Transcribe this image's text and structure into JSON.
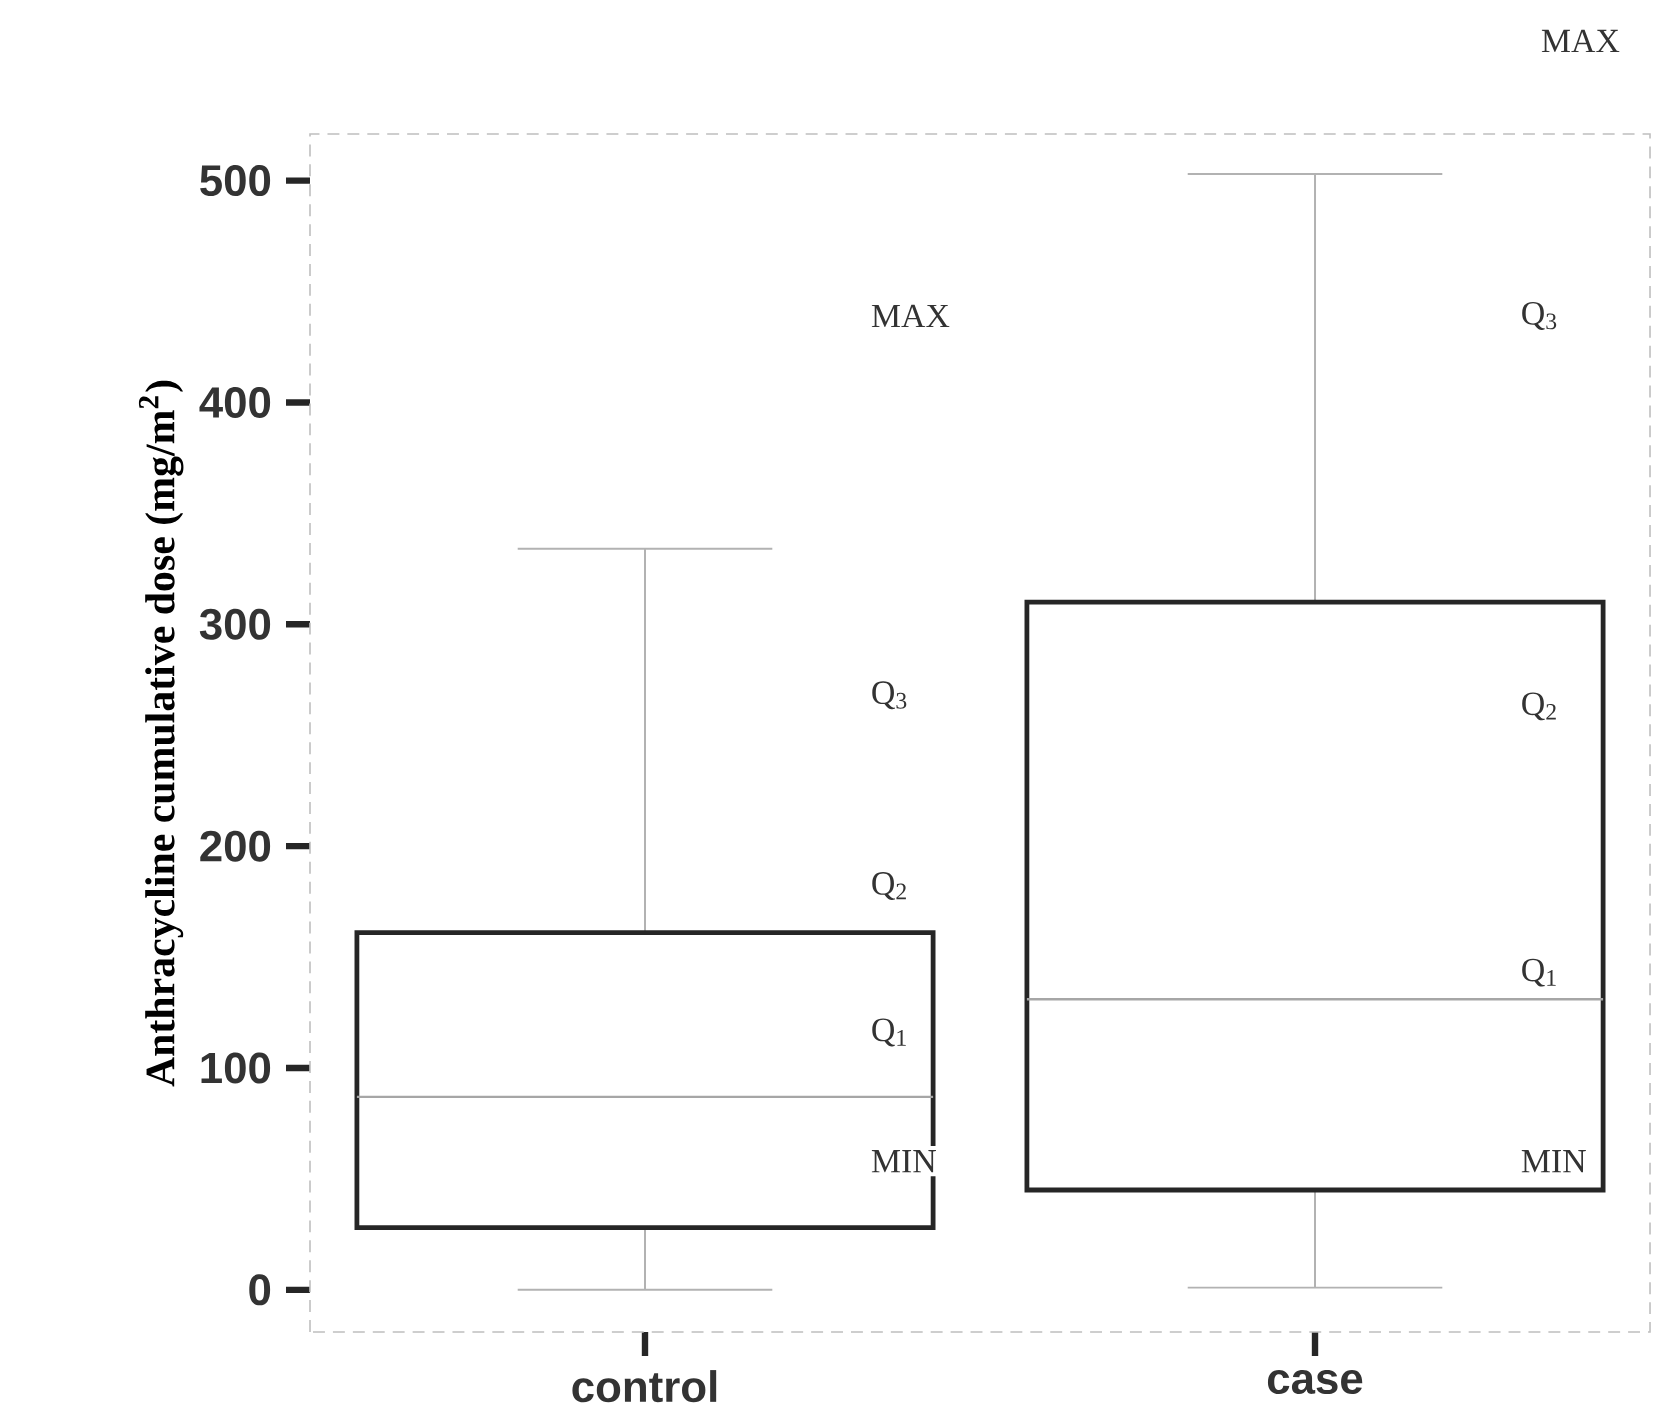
{
  "chart_data": {
    "type": "box",
    "ylabel": "Anthracycline cumulative dose  (mg/m$^{2}$)",
    "categories": [
      "control",
      "case"
    ],
    "boxes": [
      {
        "low": 0,
        "q1": 28,
        "median": 87,
        "q3": 161,
        "high": 334
      },
      {
        "low": 1,
        "q1": 45,
        "median": 131,
        "q3": 310,
        "high": 503
      }
    ],
    "ylim": [
      -19,
      521
    ],
    "yticks": [
      0,
      100,
      200,
      300,
      400,
      500
    ],
    "grid": false,
    "annotations": [
      "MAX",
      "MAX",
      "Q$_{3}$",
      "Q$_{2}$",
      "Q$_{1}$",
      "MIN",
      "Q$_{3}$",
      "Q$_{2}$",
      "Q$_{1}$",
      "MIN"
    ]
  }
}
